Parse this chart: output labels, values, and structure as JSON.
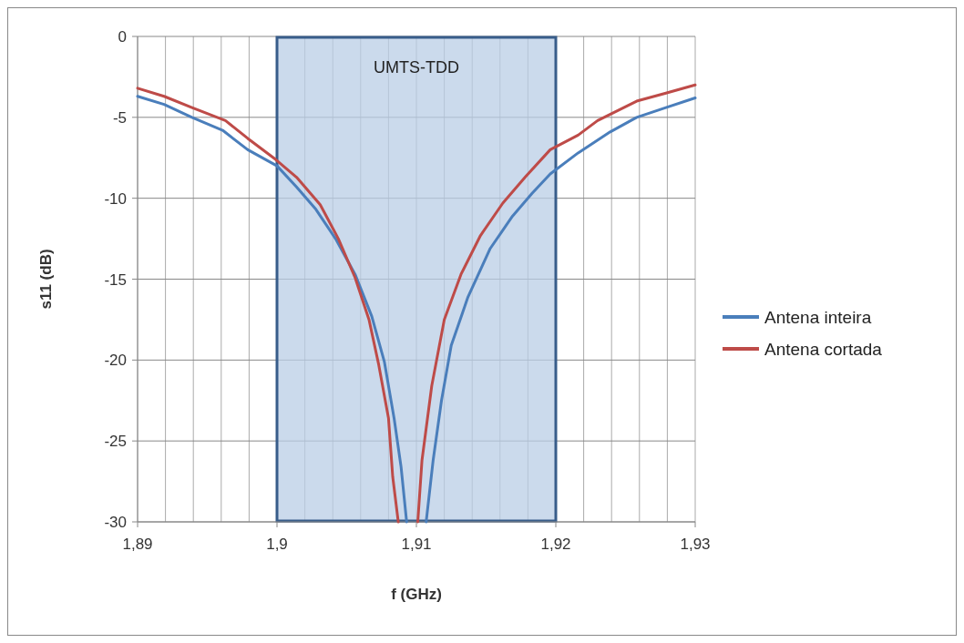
{
  "chart_data": {
    "type": "line",
    "xlabel": "f (GHz)",
    "ylabel": "s11 (dB)",
    "xlim": [
      1.89,
      1.93
    ],
    "xticks": [
      {
        "value": 1.89,
        "label": "1,89"
      },
      {
        "value": 1.892,
        "label": null
      },
      {
        "value": 1.894,
        "label": null
      },
      {
        "value": 1.896,
        "label": null
      },
      {
        "value": 1.898,
        "label": null
      },
      {
        "value": 1.9,
        "label": "1,9"
      },
      {
        "value": 1.902,
        "label": null
      },
      {
        "value": 1.904,
        "label": null
      },
      {
        "value": 1.906,
        "label": null
      },
      {
        "value": 1.908,
        "label": null
      },
      {
        "value": 1.91,
        "label": "1,91"
      },
      {
        "value": 1.912,
        "label": null
      },
      {
        "value": 1.914,
        "label": null
      },
      {
        "value": 1.916,
        "label": null
      },
      {
        "value": 1.918,
        "label": null
      },
      {
        "value": 1.92,
        "label": "1,92"
      },
      {
        "value": 1.922,
        "label": null
      },
      {
        "value": 1.924,
        "label": null
      },
      {
        "value": 1.926,
        "label": null
      },
      {
        "value": 1.928,
        "label": null
      },
      {
        "value": 1.93,
        "label": "1,93"
      }
    ],
    "ylim": [
      -30,
      0
    ],
    "yticks": [
      -30,
      -25,
      -20,
      -15,
      -10,
      -5,
      0
    ],
    "grid": true,
    "legend": "right",
    "line_style": "solid",
    "bands": [
      {
        "axis": "x",
        "from": 1.9,
        "to": 1.92,
        "label": "UMTS-TDD",
        "color": "#b9cde5"
      }
    ],
    "series": [
      {
        "name": "Antena inteira",
        "color": "#4a7ebb",
        "x": [
          1.89,
          1.8919,
          1.8939,
          1.8961,
          1.8979,
          1.9,
          1.9014,
          1.9028,
          1.9042,
          1.9056,
          1.9068,
          1.9077,
          1.9084,
          1.9089,
          1.9093,
          1.91,
          1.9107,
          1.9112,
          1.9118,
          1.9125,
          1.9137,
          1.9153,
          1.9169,
          1.9183,
          1.9196,
          1.9216,
          1.9239,
          1.9258,
          1.9279,
          1.93
        ],
        "values": [
          -3.7,
          -4.2,
          -5.0,
          -5.8,
          -7.0,
          -8.0,
          -9.3,
          -10.7,
          -12.5,
          -14.7,
          -17.3,
          -20.1,
          -23.6,
          -26.6,
          -30,
          null,
          -30,
          -26.2,
          -22.5,
          -19.1,
          -16.1,
          -13.1,
          -11.1,
          -9.7,
          -8.5,
          -7.2,
          -5.9,
          -5.0,
          -4.4,
          -3.8
        ]
      },
      {
        "name": "Antena cortada",
        "color": "#be4b48",
        "x": [
          1.89,
          1.8919,
          1.8939,
          1.8963,
          1.8979,
          1.8999,
          1.9014,
          1.9031,
          1.9044,
          1.9056,
          1.9066,
          1.9073,
          1.908,
          1.9083,
          1.9087,
          1.9094,
          1.9101,
          1.9104,
          1.9111,
          1.912,
          1.9132,
          1.9146,
          1.9162,
          1.9178,
          1.9196,
          1.9216,
          1.923,
          1.9258,
          1.9279,
          1.93
        ],
        "values": [
          -3.2,
          -3.7,
          -4.4,
          -5.2,
          -6.3,
          -7.6,
          -8.7,
          -10.4,
          -12.5,
          -14.9,
          -17.5,
          -20.3,
          -23.6,
          -27.2,
          -30,
          null,
          -30,
          -26.2,
          -21.6,
          -17.5,
          -14.7,
          -12.3,
          -10.3,
          -8.7,
          -7.0,
          -6.1,
          -5.2,
          -4.0,
          -3.5,
          -3.0
        ]
      }
    ]
  }
}
